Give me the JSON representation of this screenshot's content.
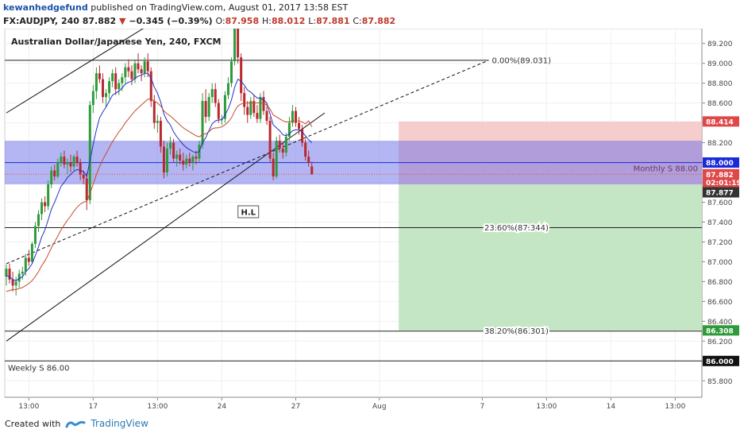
{
  "header": {
    "user": "kewanhedgefund",
    "published": "published on TradingView.com, August 01, 2017 13:58 EST",
    "symbol": "FX:AUDJPY, 240",
    "last": "87.882",
    "change": "−0.345 (−0.39%)",
    "ohlc": {
      "o_label": "O:",
      "o": "87.958",
      "h_label": "H:",
      "h": "88.012",
      "l_label": "L:",
      "l": "87.881",
      "c_label": "C:",
      "c": "87.882"
    }
  },
  "footer": {
    "created_with": "Created with",
    "brand": "TradingView"
  },
  "colors": {
    "up": "#2e9a3a",
    "down": "#b8282e",
    "ema_fast": "#2230c8",
    "ema_slow": "#c84a2a",
    "zone_blue": "#6a6ee8",
    "target_green": "#bfe3bf",
    "stop_red": "#f4c4c4"
  },
  "chart_data": {
    "type": "candlestick",
    "title": "Australian Dollar/Japanese Yen, 240, FXCM",
    "ylim": [
      85.65,
      89.35
    ],
    "y_ticks": [
      "89.200",
      "89.000",
      "88.800",
      "88.600",
      "88.400",
      "88.200",
      "88.000",
      "87.800",
      "87.600",
      "87.400",
      "87.200",
      "87.000",
      "86.800",
      "86.600",
      "86.400",
      "86.200",
      "86.000",
      "85.800"
    ],
    "x_ticks": [
      {
        "i": 7,
        "label": "13:00"
      },
      {
        "i": 27,
        "label": "17"
      },
      {
        "i": 47,
        "label": "13:00"
      },
      {
        "i": 67,
        "label": "24"
      },
      {
        "i": 90,
        "label": "27"
      },
      {
        "i": 116,
        "label": "Aug"
      },
      {
        "i": 148,
        "label": "7"
      },
      {
        "i": 168,
        "label": "13:00"
      },
      {
        "i": 188,
        "label": "14"
      },
      {
        "i": 208,
        "label": "13:00"
      }
    ],
    "candles": [
      [
        86.85,
        86.97,
        86.76,
        86.93
      ],
      [
        86.93,
        86.98,
        86.78,
        86.82
      ],
      [
        86.82,
        86.9,
        86.7,
        86.76
      ],
      [
        86.76,
        86.85,
        86.66,
        86.8
      ],
      [
        86.8,
        86.92,
        86.74,
        86.88
      ],
      [
        86.88,
        86.95,
        86.82,
        86.9
      ],
      [
        86.9,
        87.08,
        86.86,
        87.04
      ],
      [
        87.04,
        87.12,
        86.96,
        87.0
      ],
      [
        87.0,
        87.2,
        86.98,
        87.18
      ],
      [
        87.18,
        87.4,
        87.14,
        87.36
      ],
      [
        87.36,
        87.52,
        87.3,
        87.48
      ],
      [
        87.48,
        87.64,
        87.42,
        87.6
      ],
      [
        87.6,
        87.66,
        87.5,
        87.56
      ],
      [
        87.56,
        87.82,
        87.52,
        87.78
      ],
      [
        87.78,
        87.96,
        87.74,
        87.92
      ],
      [
        87.92,
        87.98,
        87.82,
        87.86
      ],
      [
        87.86,
        88.04,
        87.84,
        88.0
      ],
      [
        88.0,
        88.1,
        87.96,
        88.06
      ],
      [
        88.06,
        88.12,
        87.94,
        87.98
      ],
      [
        87.98,
        88.04,
        87.88,
        88.0
      ],
      [
        88.0,
        88.08,
        87.9,
        87.96
      ],
      [
        87.96,
        88.08,
        87.92,
        88.06
      ],
      [
        88.06,
        88.12,
        87.96,
        88.0
      ],
      [
        88.0,
        88.04,
        87.82,
        87.88
      ],
      [
        87.88,
        87.92,
        87.78,
        87.84
      ],
      [
        87.84,
        87.9,
        87.52,
        87.62
      ],
      [
        87.62,
        88.62,
        87.58,
        88.58
      ],
      [
        88.58,
        88.78,
        88.5,
        88.72
      ],
      [
        88.72,
        88.96,
        88.64,
        88.9
      ],
      [
        88.9,
        88.98,
        88.8,
        88.84
      ],
      [
        88.84,
        88.9,
        88.6,
        88.66
      ],
      [
        88.66,
        88.74,
        88.56,
        88.7
      ],
      [
        88.7,
        88.86,
        88.64,
        88.82
      ],
      [
        88.82,
        88.94,
        88.76,
        88.9
      ],
      [
        88.9,
        88.96,
        88.68,
        88.74
      ],
      [
        88.74,
        88.84,
        88.68,
        88.8
      ],
      [
        88.8,
        88.9,
        88.72,
        88.86
      ],
      [
        88.86,
        89.0,
        88.8,
        88.96
      ],
      [
        88.96,
        89.04,
        88.86,
        88.92
      ],
      [
        88.92,
        88.98,
        88.78,
        88.84
      ],
      [
        88.84,
        89.04,
        88.8,
        89.0
      ],
      [
        89.0,
        89.1,
        88.9,
        88.94
      ],
      [
        88.94,
        88.98,
        88.82,
        88.9
      ],
      [
        88.9,
        89.06,
        88.86,
        89.02
      ],
      [
        89.02,
        89.1,
        88.86,
        88.92
      ],
      [
        88.92,
        88.96,
        88.56,
        88.62
      ],
      [
        88.62,
        88.68,
        88.34,
        88.4
      ],
      [
        88.4,
        88.48,
        88.3,
        88.42
      ],
      [
        88.42,
        88.46,
        88.1,
        88.16
      ],
      [
        88.16,
        88.22,
        87.84,
        87.9
      ],
      [
        87.9,
        88.2,
        87.86,
        88.14
      ],
      [
        88.14,
        88.26,
        88.08,
        88.2
      ],
      [
        88.2,
        88.24,
        88.0,
        88.04
      ],
      [
        88.04,
        88.12,
        87.96,
        88.08
      ],
      [
        88.08,
        88.14,
        87.98,
        88.02
      ],
      [
        88.02,
        88.1,
        87.92,
        87.98
      ],
      [
        87.98,
        88.08,
        87.94,
        88.04
      ],
      [
        88.04,
        88.1,
        87.96,
        88.0
      ],
      [
        88.0,
        88.08,
        87.92,
        88.06
      ],
      [
        88.06,
        88.12,
        87.98,
        88.04
      ],
      [
        88.04,
        88.22,
        88.0,
        88.18
      ],
      [
        88.18,
        88.7,
        88.14,
        88.62
      ],
      [
        88.62,
        88.74,
        88.4,
        88.46
      ],
      [
        88.46,
        88.7,
        88.42,
        88.66
      ],
      [
        88.66,
        88.8,
        88.6,
        88.74
      ],
      [
        88.74,
        88.8,
        88.56,
        88.6
      ],
      [
        88.6,
        88.64,
        88.4,
        88.44
      ],
      [
        88.44,
        88.48,
        88.38,
        88.44
      ],
      [
        88.44,
        88.72,
        88.4,
        88.68
      ],
      [
        88.68,
        88.86,
        88.64,
        88.8
      ],
      [
        88.8,
        89.06,
        88.76,
        89.02
      ],
      [
        89.02,
        89.42,
        88.98,
        89.38
      ],
      [
        89.38,
        89.42,
        89.0,
        89.06
      ],
      [
        89.06,
        89.1,
        88.62,
        88.7
      ],
      [
        88.7,
        88.76,
        88.48,
        88.56
      ],
      [
        88.56,
        88.62,
        88.4,
        88.48
      ],
      [
        88.48,
        88.66,
        88.44,
        88.62
      ],
      [
        88.62,
        88.68,
        88.46,
        88.5
      ],
      [
        88.5,
        88.58,
        88.4,
        88.44
      ],
      [
        88.44,
        88.7,
        88.4,
        88.66
      ],
      [
        88.66,
        88.72,
        88.48,
        88.52
      ],
      [
        88.52,
        88.6,
        88.38,
        88.42
      ],
      [
        88.42,
        88.46,
        88.0,
        88.04
      ],
      [
        88.04,
        88.1,
        87.82,
        87.86
      ],
      [
        87.86,
        88.26,
        87.84,
        88.22
      ],
      [
        88.22,
        88.28,
        88.1,
        88.14
      ],
      [
        88.14,
        88.2,
        88.04,
        88.1
      ],
      [
        88.1,
        88.3,
        88.06,
        88.26
      ],
      [
        88.26,
        88.46,
        88.22,
        88.4
      ],
      [
        88.4,
        88.58,
        88.36,
        88.52
      ],
      [
        88.52,
        88.56,
        88.36,
        88.4
      ],
      [
        88.4,
        88.46,
        88.28,
        88.34
      ],
      [
        88.34,
        88.38,
        88.16,
        88.2
      ],
      [
        88.2,
        88.24,
        88.02,
        88.06
      ],
      [
        88.06,
        88.12,
        87.96,
        88.0
      ],
      [
        87.96,
        88.01,
        87.88,
        87.88
      ]
    ],
    "ema_fast": [
      86.86,
      86.85,
      86.82,
      86.81,
      86.83,
      86.85,
      86.9,
      86.93,
      86.98,
      87.06,
      87.15,
      87.25,
      87.32,
      87.42,
      87.53,
      87.6,
      87.68,
      87.76,
      87.8,
      87.85,
      87.88,
      87.91,
      87.93,
      87.92,
      87.91,
      87.86,
      88.02,
      88.18,
      88.33,
      88.45,
      88.51,
      88.56,
      88.62,
      88.68,
      88.7,
      88.72,
      88.75,
      88.79,
      88.81,
      88.82,
      88.85,
      88.87,
      88.88,
      88.9,
      88.9,
      88.85,
      88.76,
      88.7,
      88.61,
      88.49,
      88.42,
      88.38,
      88.31,
      88.26,
      88.22,
      88.18,
      88.15,
      88.13,
      88.11,
      88.1,
      88.11,
      88.2,
      88.25,
      88.32,
      88.39,
      88.42,
      88.43,
      88.43,
      88.48,
      88.54,
      88.63,
      88.76,
      88.84,
      88.82,
      88.78,
      88.73,
      88.71,
      88.68,
      88.65,
      88.65,
      88.63,
      88.6,
      88.49,
      88.38,
      88.35,
      88.32,
      88.28,
      88.27,
      88.29,
      88.32,
      88.33,
      88.33,
      88.31,
      88.27,
      88.23,
      88.2
    ],
    "ema_slow": [
      86.7,
      86.71,
      86.72,
      86.72,
      86.73,
      86.74,
      86.76,
      86.78,
      86.81,
      86.85,
      86.9,
      86.96,
      87.01,
      87.07,
      87.14,
      87.2,
      87.26,
      87.32,
      87.37,
      87.42,
      87.46,
      87.51,
      87.55,
      87.58,
      87.6,
      87.61,
      87.69,
      87.78,
      87.88,
      87.96,
      88.03,
      88.09,
      88.15,
      88.21,
      88.26,
      88.31,
      88.35,
      88.4,
      88.44,
      88.48,
      88.52,
      88.55,
      88.58,
      88.61,
      88.64,
      88.64,
      88.62,
      88.6,
      88.57,
      88.52,
      88.49,
      88.47,
      88.44,
      88.41,
      88.38,
      88.35,
      88.33,
      88.31,
      88.29,
      88.27,
      88.26,
      88.28,
      88.29,
      88.31,
      88.34,
      88.35,
      88.35,
      88.36,
      88.38,
      88.41,
      88.45,
      88.52,
      88.57,
      88.59,
      88.6,
      88.6,
      88.6,
      88.6,
      88.6,
      88.6,
      88.6,
      88.58,
      88.54,
      88.48,
      88.46,
      88.44,
      88.42,
      88.41,
      88.41,
      88.42,
      88.42,
      88.42,
      88.41,
      88.39,
      88.42,
      88.36
    ],
    "levels": [
      {
        "name": "fib-0",
        "value": 89.031,
        "label": "0.00%(89.031)",
        "x_from": 0,
        "x_to": 150
      },
      {
        "name": "fib-23.6",
        "value": 87.344,
        "label": "23.60%(87.344)",
        "x_from": 0,
        "x_to": 222
      },
      {
        "name": "fib-38.2",
        "value": 86.301,
        "label": "38.20%(86.301)",
        "x_from": 0,
        "x_to": 222
      },
      {
        "name": "weekly-s",
        "value": 86.0,
        "label": "Weekly S 86.00",
        "x_from": 0,
        "x_to": 222
      },
      {
        "name": "monthly-s",
        "value": 88.0,
        "label": "Monthly S 88.00",
        "x_from": 0,
        "x_to": 222
      }
    ],
    "zone": {
      "from": 87.78,
      "to": 88.22
    },
    "position": {
      "entry": 87.78,
      "stop": 88.414,
      "target": 86.308,
      "x_from": 122,
      "x_to": 222
    },
    "channel": {
      "upper": [
        [
          0,
          88.5
        ],
        [
          140,
          91.3
        ]
      ],
      "lower": [
        [
          0,
          86.2
        ],
        [
          99,
          88.5
        ]
      ],
      "dashed": [
        [
          0,
          86.98
        ],
        [
          150,
          89.031
        ]
      ]
    },
    "annotation": {
      "label": "H.L",
      "i": 75,
      "value": 87.5
    },
    "price_labels": [
      {
        "value": 88.414,
        "label": "88.414",
        "color": "#e04848"
      },
      {
        "value": 88.0,
        "label": "88.000",
        "color": "#1a2adb"
      },
      {
        "value": 87.882,
        "label": "87.882",
        "color": "#e04848"
      },
      {
        "value": 87.8,
        "label": "02:01:19",
        "color": "#e04848"
      },
      {
        "value": 87.7,
        "label": "87.877",
        "color": "#333333"
      },
      {
        "value": 86.308,
        "label": "86.308",
        "color": "#2e9a3a"
      },
      {
        "value": 86.0,
        "label": "86.000",
        "color": "#111111"
      }
    ]
  }
}
